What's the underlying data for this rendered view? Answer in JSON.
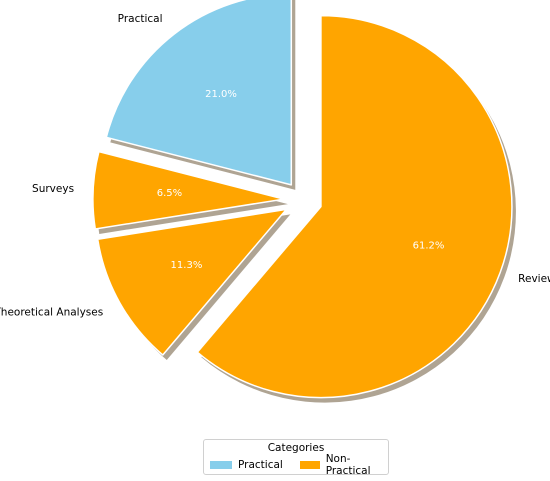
{
  "chart_data": {
    "type": "pie",
    "slices": [
      {
        "label": "Practical",
        "value": 21.0,
        "pct_text": "21.0%",
        "color": "#87CEEB"
      },
      {
        "label": "Surveys",
        "value": 6.5,
        "pct_text": "6.5%",
        "color": "#FFA500"
      },
      {
        "label": "Theoretical Analyses",
        "value": 11.3,
        "pct_text": "11.3%",
        "color": "#FFA500"
      },
      {
        "label": "Reviews",
        "value": 61.2,
        "pct_text": "61.2%",
        "color": "#FFA500"
      }
    ],
    "start_angle_deg": 90,
    "direction": "counterclockwise",
    "exploded": true,
    "shadow": true,
    "legend": {
      "title": "Categories",
      "placement": "bottom-center",
      "entries": [
        {
          "label": "Practical",
          "color": "#87CEEB"
        },
        {
          "label": "Non-Practical",
          "color": "#FFA500"
        }
      ]
    }
  }
}
